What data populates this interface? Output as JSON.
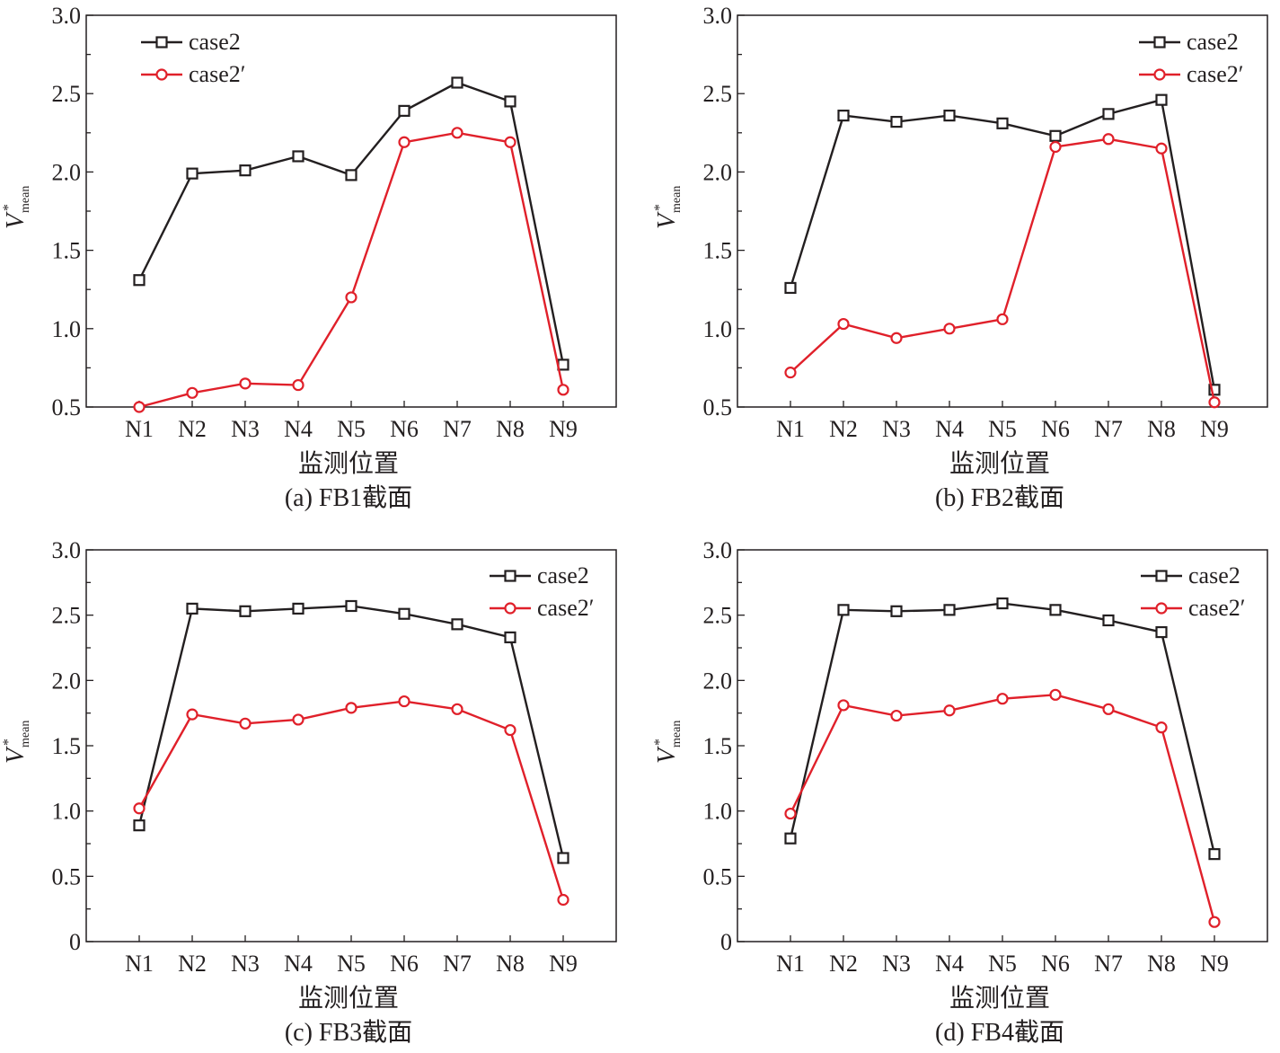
{
  "chart_data": [
    {
      "type": "line",
      "caption": "(a) FB1截面",
      "xlabel": "监测位置",
      "ylabel": {
        "base": "V",
        "sup": "*",
        "sub": "mean"
      },
      "categories": [
        "N1",
        "N2",
        "N3",
        "N4",
        "N5",
        "N6",
        "N7",
        "N8",
        "N9"
      ],
      "ylim": [
        0.5,
        3.0
      ],
      "yticks": [
        "0.5",
        "1.0",
        "1.5",
        "2.0",
        "2.5",
        "3.0"
      ],
      "legend": "top-left",
      "series": [
        {
          "name": "case2",
          "color": "#231f20",
          "marker": "square",
          "values": [
            1.31,
            1.99,
            2.01,
            2.1,
            1.98,
            2.39,
            2.57,
            2.45,
            0.77
          ]
        },
        {
          "name": "case2′",
          "color": "#e0202a",
          "marker": "circle",
          "values": [
            0.5,
            0.59,
            0.65,
            0.64,
            1.2,
            2.19,
            2.25,
            2.19,
            0.61
          ]
        }
      ]
    },
    {
      "type": "line",
      "caption": "(b) FB2截面",
      "xlabel": "监测位置",
      "ylabel": {
        "base": "V",
        "sup": "*",
        "sub": "mean"
      },
      "categories": [
        "N1",
        "N2",
        "N3",
        "N4",
        "N5",
        "N6",
        "N7",
        "N8",
        "N9"
      ],
      "ylim": [
        0.5,
        3.0
      ],
      "yticks": [
        "0.5",
        "1.0",
        "1.5",
        "2.0",
        "2.5",
        "3.0"
      ],
      "legend": "top-right",
      "series": [
        {
          "name": "case2",
          "color": "#231f20",
          "marker": "square",
          "values": [
            1.26,
            2.36,
            2.32,
            2.36,
            2.31,
            2.23,
            2.37,
            2.46,
            0.61
          ]
        },
        {
          "name": "case2′",
          "color": "#e0202a",
          "marker": "circle",
          "values": [
            0.72,
            1.03,
            0.94,
            1.0,
            1.06,
            2.16,
            2.21,
            2.15,
            0.53
          ]
        }
      ]
    },
    {
      "type": "line",
      "caption": "(c) FB3截面",
      "xlabel": "监测位置",
      "ylabel": {
        "base": "V",
        "sup": "*",
        "sub": "mean"
      },
      "categories": [
        "N1",
        "N2",
        "N3",
        "N4",
        "N5",
        "N6",
        "N7",
        "N8",
        "N9"
      ],
      "ylim": [
        0,
        3.0
      ],
      "yticks": [
        "0",
        "0.5",
        "1.0",
        "1.5",
        "2.0",
        "2.5",
        "3.0"
      ],
      "legend": "top-right",
      "series": [
        {
          "name": "case2",
          "color": "#231f20",
          "marker": "square",
          "values": [
            0.89,
            2.55,
            2.53,
            2.55,
            2.57,
            2.51,
            2.43,
            2.33,
            0.64
          ]
        },
        {
          "name": "case2′",
          "color": "#e0202a",
          "marker": "circle",
          "values": [
            1.02,
            1.74,
            1.67,
            1.7,
            1.79,
            1.84,
            1.78,
            1.62,
            0.32
          ]
        }
      ]
    },
    {
      "type": "line",
      "caption": "(d) FB4截面",
      "xlabel": "监测位置",
      "ylabel": {
        "base": "V",
        "sup": "*",
        "sub": "mean"
      },
      "categories": [
        "N1",
        "N2",
        "N3",
        "N4",
        "N5",
        "N6",
        "N7",
        "N8",
        "N9"
      ],
      "ylim": [
        0,
        3.0
      ],
      "yticks": [
        "0",
        "0.5",
        "1.0",
        "1.5",
        "2.0",
        "2.5",
        "3.0"
      ],
      "legend": "top-right",
      "series": [
        {
          "name": "case2",
          "color": "#231f20",
          "marker": "square",
          "values": [
            0.79,
            2.54,
            2.53,
            2.54,
            2.59,
            2.54,
            2.46,
            2.37,
            0.67
          ]
        },
        {
          "name": "case2′",
          "color": "#e0202a",
          "marker": "circle",
          "values": [
            0.98,
            1.81,
            1.73,
            1.77,
            1.86,
            1.89,
            1.78,
            1.64,
            0.15
          ]
        }
      ]
    }
  ]
}
